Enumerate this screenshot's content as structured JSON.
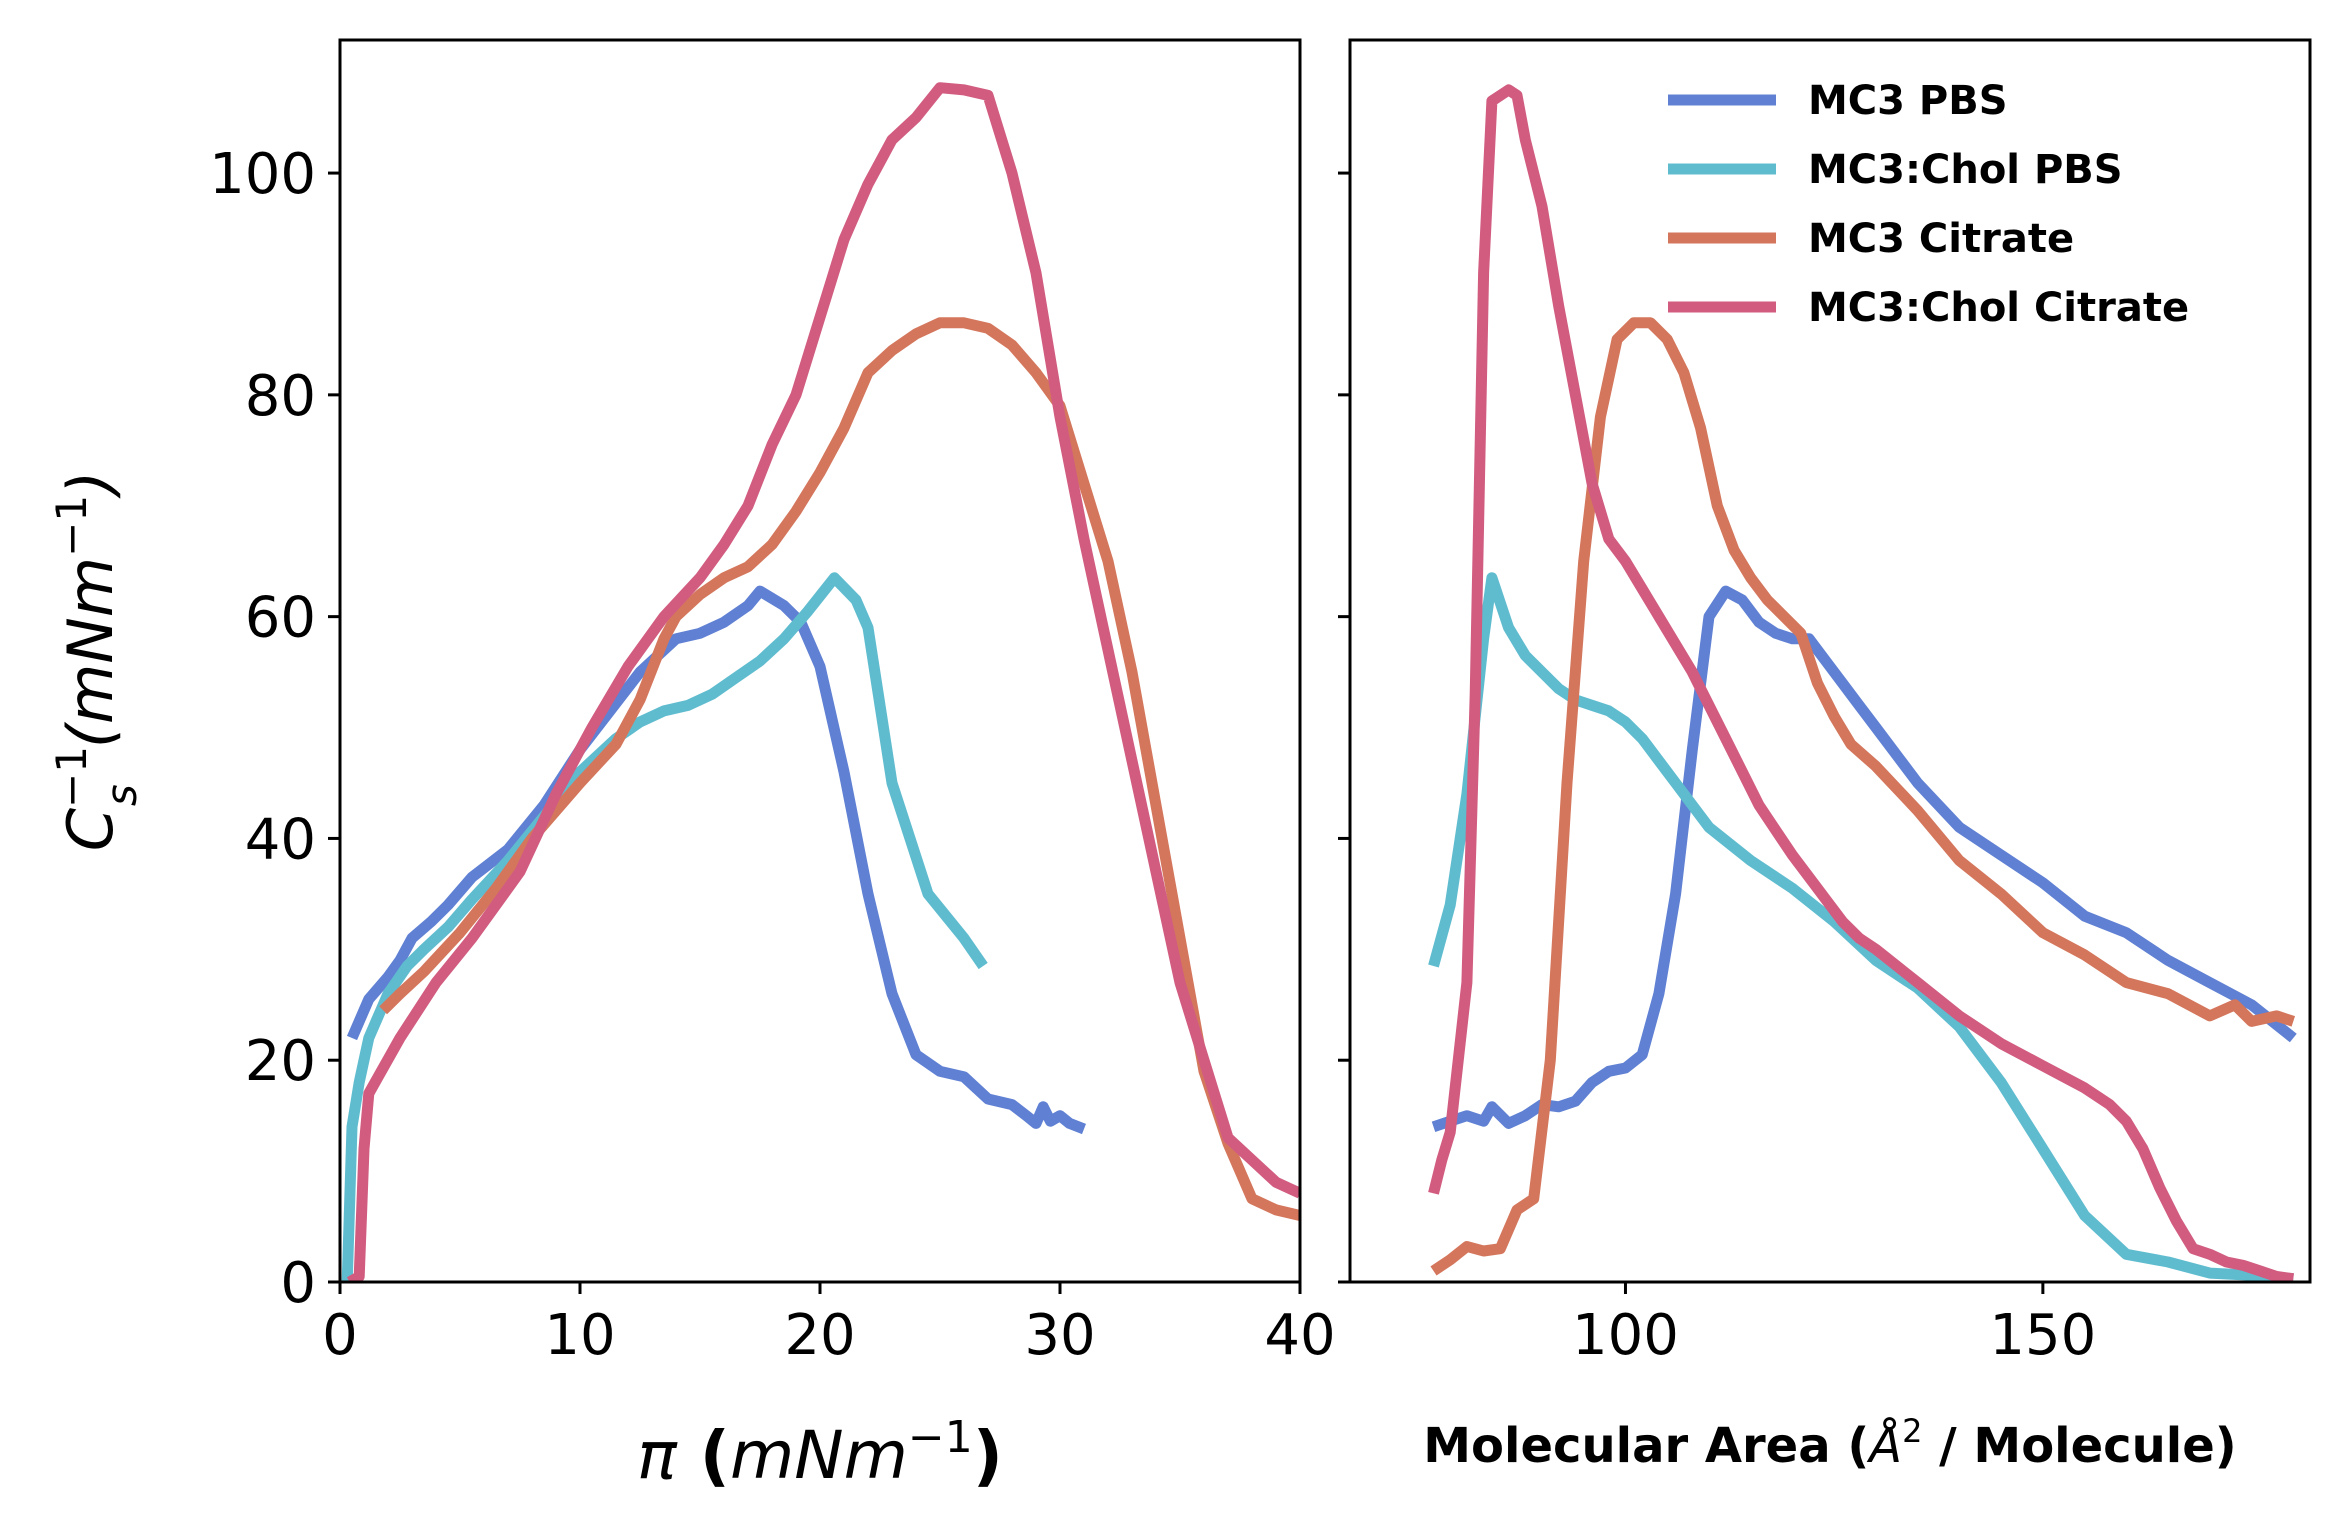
{
  "chart_data": [
    {
      "type": "line",
      "panel": "left",
      "xlabel": "π (mNm⁻¹)",
      "ylabel": "Cs⁻¹(mNm⁻¹)",
      "xlim": [
        0,
        40
      ],
      "ylim": [
        0,
        112
      ],
      "xticks": [
        "0",
        "10",
        "20",
        "30",
        "40"
      ],
      "yticks": [
        "0",
        "20",
        "40",
        "60",
        "80",
        "100"
      ],
      "series": [
        {
          "name": "MC3 PBS",
          "color": "#5f80d3",
          "x": [
            0.5,
            1.2,
            2.0,
            2.5,
            3.0,
            3.8,
            4.5,
            5.5,
            7.0,
            8.5,
            10.0,
            12.5,
            14.0,
            15.0,
            16.0,
            17.0,
            17.5,
            18.5,
            19.2,
            20.0,
            21.0,
            22.0,
            23.0,
            24.0,
            25.0,
            26.0,
            27.0,
            28.0,
            28.6,
            29.0,
            29.3,
            29.6,
            30.0,
            30.4,
            31.0
          ],
          "y": [
            22.0,
            25.5,
            27.5,
            29.0,
            31.0,
            32.5,
            34.0,
            36.5,
            39.0,
            43.0,
            48.0,
            55.0,
            58.0,
            58.5,
            59.5,
            61.0,
            62.3,
            61.0,
            59.5,
            55.5,
            46.0,
            35.0,
            26.0,
            20.5,
            19.0,
            18.5,
            16.5,
            16.0,
            15.0,
            14.3,
            15.8,
            14.5,
            15.0,
            14.3,
            13.8
          ]
        },
        {
          "name": "MC3:Chol PBS",
          "color": "#5fbccf",
          "x": [
            0.3,
            0.5,
            0.8,
            1.2,
            2.0,
            2.8,
            3.5,
            4.5,
            5.5,
            7.0,
            8.5,
            10.0,
            11.5,
            12.5,
            13.5,
            14.5,
            15.5,
            16.5,
            17.5,
            18.5,
            19.5,
            20.6,
            21.5,
            22.0,
            23.0,
            24.5,
            26.0,
            26.8
          ],
          "y": [
            0.0,
            14.0,
            18.0,
            22.0,
            26.0,
            28.5,
            30.0,
            32.0,
            34.5,
            38.0,
            42.0,
            46.0,
            49.0,
            50.5,
            51.5,
            52.0,
            53.0,
            54.5,
            56.0,
            58.0,
            60.5,
            63.5,
            61.5,
            59.0,
            45.0,
            35.0,
            31.0,
            28.5
          ]
        },
        {
          "name": "MC3 Citrate",
          "color": "#d4765c",
          "x": [
            1.8,
            2.5,
            3.5,
            5.0,
            6.5,
            8.0,
            10.0,
            11.5,
            12.5,
            13.5,
            14.0,
            15.0,
            16.0,
            17.0,
            18.0,
            19.0,
            20.0,
            21.0,
            22.0,
            23.0,
            24.0,
            25.0,
            26.0,
            27.0,
            28.0,
            29.0,
            30.0,
            31.0,
            32.0,
            33.0,
            34.0,
            35.0,
            36.0,
            37.0,
            38.0,
            39.0,
            40.0
          ],
          "y": [
            24.5,
            26.0,
            28.0,
            31.5,
            35.5,
            40.0,
            45.0,
            48.5,
            52.5,
            58.0,
            60.0,
            62.0,
            63.5,
            64.5,
            66.5,
            69.5,
            73.0,
            77.0,
            82.0,
            84.0,
            85.5,
            86.5,
            86.5,
            86.0,
            84.5,
            82.0,
            79.0,
            72.0,
            65.0,
            55.0,
            43.0,
            31.0,
            19.0,
            12.5,
            7.5,
            6.5,
            6.0
          ]
        },
        {
          "name": "MC3:Chol Citrate",
          "color": "#d15c80",
          "x": [
            0.4,
            0.8,
            1.0,
            1.2,
            2.5,
            4.0,
            5.5,
            7.5,
            9.0,
            10.5,
            12.0,
            13.5,
            15.0,
            16.0,
            17.0,
            18.0,
            19.0,
            20.0,
            21.0,
            22.0,
            23.0,
            24.0,
            25.0,
            26.0,
            27.0,
            28.0,
            29.0,
            30.0,
            31.0,
            32.0,
            33.0,
            34.0,
            35.0,
            36.0,
            37.0,
            38.0,
            39.0,
            40.0
          ],
          "y": [
            0.0,
            0.5,
            12.0,
            17.0,
            22.0,
            27.0,
            31.0,
            37.0,
            44.0,
            50.0,
            55.5,
            60.0,
            63.5,
            66.5,
            70.0,
            75.5,
            80.0,
            87.0,
            94.0,
            99.0,
            103.0,
            105.0,
            107.7,
            107.5,
            107.0,
            100.0,
            91.0,
            78.0,
            67.0,
            57.0,
            47.0,
            37.0,
            27.0,
            20.0,
            13.0,
            11.0,
            9.0,
            8.0
          ]
        }
      ]
    },
    {
      "type": "line",
      "panel": "right",
      "xlabel": "Molecular Area (Å² / Molecule)",
      "xlim": [
        67,
        182
      ],
      "ylim": [
        0,
        112
      ],
      "xticks": [
        "100",
        "150"
      ],
      "legend": {
        "position": "top-right",
        "entries": [
          "MC3 PBS",
          "MC3:Chol PBS",
          "MC3 Citrate",
          "MC3:Chol Citrate"
        ]
      },
      "series": [
        {
          "name": "MC3 PBS",
          "color": "#5f80d3",
          "x": [
            77,
            79,
            81,
            83,
            84,
            86,
            88,
            90,
            92,
            94,
            96,
            98,
            100,
            102,
            104,
            106,
            108,
            110,
            112,
            114,
            116,
            118,
            120,
            122,
            124,
            126,
            128,
            130,
            132,
            135,
            140,
            145,
            150,
            155,
            160,
            165,
            170,
            175,
            180
          ],
          "y": [
            14,
            14.5,
            15,
            14.5,
            15.8,
            14.3,
            15,
            16,
            15.8,
            16.3,
            18,
            19,
            19.3,
            20.5,
            26,
            35,
            48,
            60,
            62.3,
            61.5,
            59.5,
            58.5,
            58,
            58,
            56,
            54,
            52,
            50,
            48,
            45,
            41,
            38.5,
            36,
            33,
            31.5,
            29,
            27,
            25,
            22
          ]
        },
        {
          "name": "MC3:Chol PBS",
          "color": "#5fbccf",
          "x": [
            77,
            79,
            81,
            83,
            84,
            86,
            88,
            90,
            92,
            94,
            96,
            98,
            100,
            102,
            104,
            106,
            110,
            115,
            120,
            125,
            130,
            135,
            140,
            145,
            150,
            155,
            160,
            165,
            170,
            175,
            180
          ],
          "y": [
            28.5,
            34,
            44,
            58,
            63.5,
            59,
            56.5,
            55,
            53.5,
            52.5,
            52,
            51.5,
            50.5,
            49,
            47,
            45,
            41,
            38,
            35.5,
            32.5,
            29,
            26.5,
            23,
            18,
            12,
            6,
            2.5,
            1.8,
            0.8,
            0.6,
            0.3
          ]
        },
        {
          "name": "MC3 Citrate",
          "color": "#d4765c",
          "x": [
            77,
            79,
            81,
            83,
            85,
            87,
            89,
            91,
            93,
            95,
            97,
            99,
            101,
            103,
            105,
            107,
            109,
            111,
            113,
            115,
            117,
            119,
            121,
            123,
            125,
            127,
            130,
            135,
            140,
            145,
            150,
            155,
            160,
            165,
            170,
            173,
            175,
            178,
            180
          ],
          "y": [
            1,
            2,
            3.2,
            2.8,
            3,
            6.5,
            7.5,
            20,
            45,
            65,
            78,
            85,
            86.5,
            86.5,
            85,
            82,
            77,
            70,
            66,
            63.5,
            61.5,
            60,
            58.5,
            54,
            51,
            48.5,
            46.5,
            42.5,
            38,
            35,
            31.5,
            29.5,
            27,
            26,
            24,
            25,
            23.5,
            24,
            23.5
          ]
        },
        {
          "name": "MC3:Chol Citrate",
          "color": "#d15c80",
          "x": [
            77,
            78,
            79,
            81,
            82,
            83,
            84,
            85,
            86,
            87,
            88,
            90,
            92,
            94,
            96,
            98,
            100,
            102,
            104,
            108,
            112,
            116,
            120,
            124,
            126,
            128,
            130,
            135,
            140,
            145,
            150,
            155,
            158,
            160,
            162,
            164,
            166,
            168,
            170,
            172,
            174,
            176,
            178,
            180
          ],
          "y": [
            8,
            11,
            13.5,
            27,
            53,
            91,
            106.5,
            107,
            107.5,
            107,
            103,
            97,
            88,
            80,
            72,
            67,
            65,
            62.5,
            60,
            55,
            49,
            43,
            38.5,
            34.5,
            32.5,
            31,
            30,
            27,
            24,
            21.5,
            19.5,
            17.5,
            16,
            14.5,
            12,
            8.5,
            5.5,
            3,
            2.5,
            1.8,
            1.5,
            1,
            0.5,
            0.3
          ]
        }
      ]
    }
  ]
}
